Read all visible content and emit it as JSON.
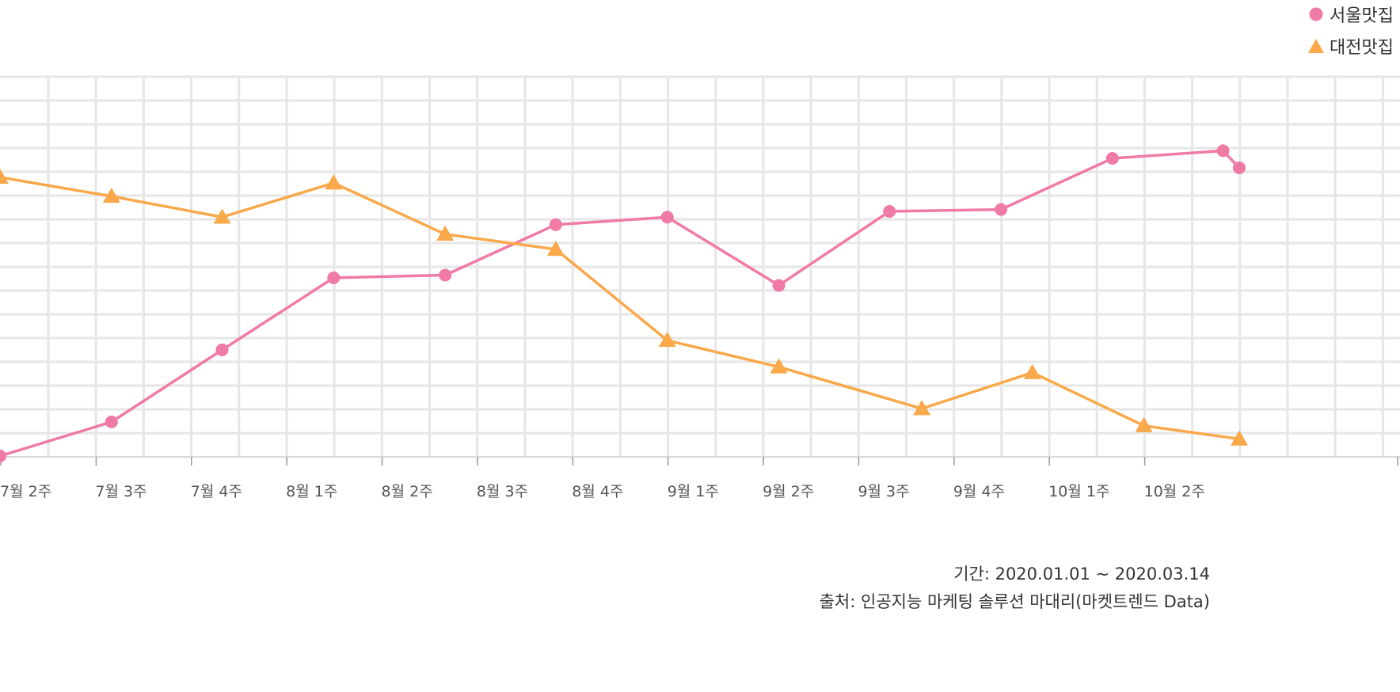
{
  "chart_data": {
    "type": "line",
    "categories": [
      "7월 2주",
      "7월 3주",
      "7월 4주",
      "8월 1주",
      "8월 2주",
      "8월 3주",
      "8월 4주",
      "9월 1주",
      "9월 2주",
      "9월 3주",
      "9월 4주",
      "10월 1주",
      "10월 2주"
    ],
    "series": [
      {
        "name": "서울맛집",
        "color": "#f07aa6",
        "marker": "circle",
        "points": [
          {
            "x": 0.0,
            "y": 0
          },
          {
            "x": 1.17,
            "y": 9
          },
          {
            "x": 2.33,
            "y": 28
          },
          {
            "x": 3.5,
            "y": 47
          },
          {
            "x": 4.67,
            "y": 47.7
          },
          {
            "x": 5.83,
            "y": 61
          },
          {
            "x": 7.0,
            "y": 63
          },
          {
            "x": 8.17,
            "y": 45
          },
          {
            "x": 9.33,
            "y": 64.5
          },
          {
            "x": 10.5,
            "y": 65
          },
          {
            "x": 11.67,
            "y": 78.5
          },
          {
            "x": 12.83,
            "y": 80.5
          },
          {
            "x": 13.0,
            "y": 76
          }
        ]
      },
      {
        "name": "대전맛집",
        "color": "#f9a84a",
        "marker": "triangle",
        "points": [
          {
            "x": 0.0,
            "y": 73.5
          },
          {
            "x": 1.17,
            "y": 68.5
          },
          {
            "x": 2.33,
            "y": 63
          },
          {
            "x": 3.5,
            "y": 72
          },
          {
            "x": 4.67,
            "y": 58.5
          },
          {
            "x": 5.83,
            "y": 54.5
          },
          {
            "x": 7.0,
            "y": 30.5
          },
          {
            "x": 8.17,
            "y": 23.5
          },
          {
            "x": 9.67,
            "y": 12.5
          },
          {
            "x": 10.83,
            "y": 22
          },
          {
            "x": 12.0,
            "y": 8
          },
          {
            "x": 13.0,
            "y": 4.5
          }
        ]
      }
    ],
    "xlim": [
      0,
      13
    ],
    "ylim": [
      0,
      100
    ],
    "grid": true,
    "legend": "top-right"
  },
  "footer": {
    "period": "기간: 2020.01.01 ~ 2020.03.14",
    "source": "출처: 인공지능 마케팅 솔루션 마대리(마켓트렌드 Data)"
  }
}
